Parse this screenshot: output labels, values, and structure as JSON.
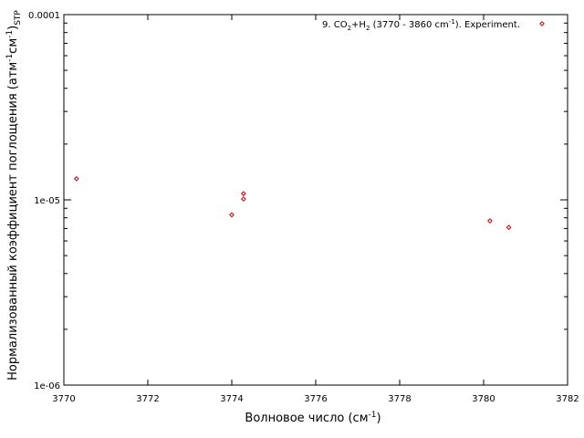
{
  "chart_data": {
    "type": "scatter",
    "xlabel": {
      "main": "Волновое число (см",
      "sup": "-1",
      "tail": ")"
    },
    "ylabel": {
      "main": "Нормализованный коэффициент поглощения (атм",
      "sup1": "-1",
      "mid": "см",
      "sup2": "-1",
      "tail": ")",
      "sub": "STP"
    },
    "x_ticks": [
      "3770",
      "3772",
      "3774",
      "3776",
      "3778",
      "3780",
      "3782"
    ],
    "y_ticks": [
      "1e-06",
      "1e-05",
      "0.0001"
    ],
    "xlim": [
      3770,
      3782
    ],
    "ylim": [
      1e-06,
      0.0001
    ],
    "yscale": "log",
    "grid": false,
    "legend_position": "top-right",
    "series": [
      {
        "legend": {
          "prefix": "9. CO",
          "sub1": "2",
          "plus": "+H",
          "sub2": "2",
          "range": " (3770 - 3860 cm",
          "sup": "-1",
          "suffix": "). Experiment."
        },
        "color": "#cc0000",
        "marker": "diamond-open",
        "points": [
          {
            "x": 3770.3,
            "y": 1.3e-05
          },
          {
            "x": 3774.0,
            "y": 8.3e-06
          },
          {
            "x": 3774.28,
            "y": 1.08e-05
          },
          {
            "x": 3774.28,
            "y": 1.01e-05
          },
          {
            "x": 3780.15,
            "y": 7.7e-06
          },
          {
            "x": 3780.6,
            "y": 7.1e-06
          }
        ]
      }
    ]
  }
}
